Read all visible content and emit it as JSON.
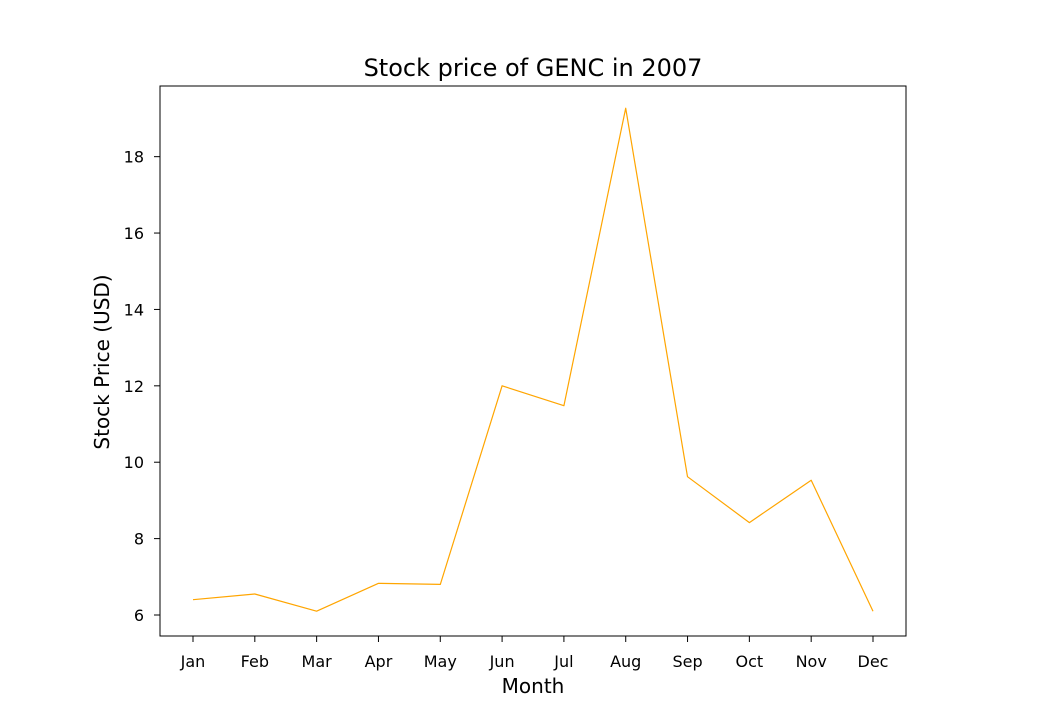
{
  "chart_data": {
    "type": "line",
    "title": "Stock price of GENC in 2007",
    "xlabel": "Month",
    "ylabel": "Stock Price (USD)",
    "categories": [
      "Jan",
      "Feb",
      "Mar",
      "Apr",
      "May",
      "Jun",
      "Jul",
      "Aug",
      "Sep",
      "Oct",
      "Nov",
      "Dec"
    ],
    "series": [
      {
        "values": [
          6.4,
          6.55,
          6.1,
          6.83,
          6.8,
          12.0,
          11.48,
          19.27,
          9.62,
          8.42,
          9.53,
          6.1
        ]
      }
    ],
    "yticks": [
      6,
      8,
      10,
      12,
      14,
      16,
      18
    ],
    "ylim": [
      5.45,
      19.85
    ],
    "grid": false,
    "line_color": "#ffa500"
  }
}
